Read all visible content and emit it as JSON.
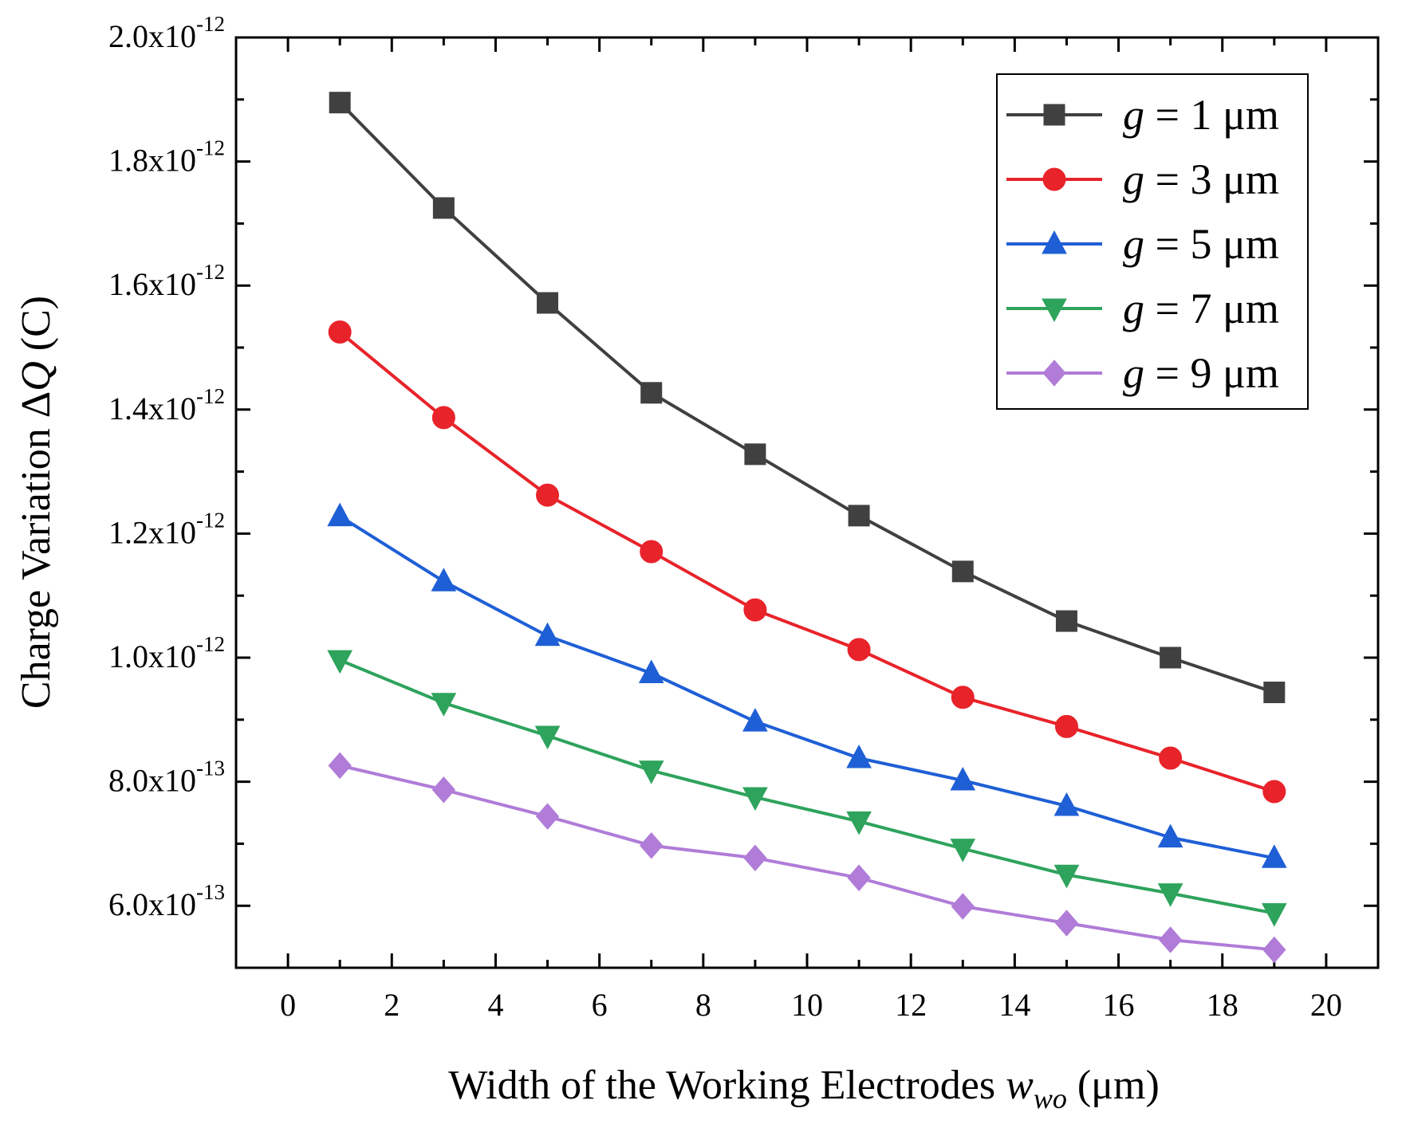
{
  "chart_data": {
    "type": "line",
    "title": "",
    "xlabel": {
      "main": "Width of the Working Electrodes ",
      "var": "w",
      "sub": "wo",
      "unit": " (μm)"
    },
    "ylabel": {
      "main": "Charge Variation Δ",
      "var": "Q",
      "unit": " (C)"
    },
    "xlim": [
      -1,
      21
    ],
    "ylim": [
      5e-13,
      2e-12
    ],
    "x_ticks": [
      0,
      2,
      4,
      6,
      8,
      10,
      12,
      14,
      16,
      18,
      20
    ],
    "x_tick_labels": [
      "0",
      "2",
      "4",
      "6",
      "8",
      "10",
      "12",
      "14",
      "16",
      "18",
      "20"
    ],
    "y_ticks": [
      {
        "value": 6e-13,
        "mantissa": "6.0x10",
        "exp": "-13"
      },
      {
        "value": 8e-13,
        "mantissa": "8.0x10",
        "exp": "-13"
      },
      {
        "value": 1e-12,
        "mantissa": "1.0x10",
        "exp": "-12"
      },
      {
        "value": 1.2e-12,
        "mantissa": "1.2x10",
        "exp": "-12"
      },
      {
        "value": 1.4e-12,
        "mantissa": "1.4x10",
        "exp": "-12"
      },
      {
        "value": 1.6e-12,
        "mantissa": "1.6x10",
        "exp": "-12"
      },
      {
        "value": 1.8e-12,
        "mantissa": "1.8x10",
        "exp": "-12"
      },
      {
        "value": 2e-12,
        "mantissa": "2.0x10",
        "exp": "-12"
      }
    ],
    "x": [
      1,
      3,
      5,
      7,
      9,
      11,
      13,
      15,
      17,
      19
    ],
    "legend_position": "top-right",
    "series": [
      {
        "name": "g = 1 μm",
        "var": "g",
        "rest": " = 1 μm",
        "marker": "square",
        "color": "#404040",
        "values": [
          1.895e-12,
          1.725e-12,
          1.572e-12,
          1.427e-12,
          1.328e-12,
          1.229e-12,
          1.139e-12,
          1.059e-12,
          1e-12,
          9.44e-13
        ]
      },
      {
        "name": "g = 3 μm",
        "var": "g",
        "rest": " = 3 μm",
        "marker": "circle",
        "color": "#e8232a",
        "values": [
          1.525e-12,
          1.387e-12,
          1.262e-12,
          1.171e-12,
          1.077e-12,
          1.013e-12,
          9.36e-13,
          8.89e-13,
          8.38e-13,
          7.84e-13
        ]
      },
      {
        "name": "g = 5 μm",
        "var": "g",
        "rest": " = 5 μm",
        "marker": "triangle-up",
        "color": "#1f5fd6",
        "values": [
          1.228e-12,
          1.123e-12,
          1.035e-12,
          9.75e-13,
          8.97e-13,
          8.38e-13,
          8.02e-13,
          7.61e-13,
          7.1e-13,
          6.77e-13
        ]
      },
      {
        "name": "g = 7 μm",
        "var": "g",
        "rest": " = 7 μm",
        "marker": "triangle-down",
        "color": "#2ea35c",
        "values": [
          9.96e-13,
          9.27e-13,
          8.74e-13,
          8.18e-13,
          7.75e-13,
          7.36e-13,
          6.92e-13,
          6.5e-13,
          6.2e-13,
          5.88e-13
        ]
      },
      {
        "name": "g = 9 μm",
        "var": "g",
        "rest": " = 9 μm",
        "marker": "diamond",
        "color": "#b07cd8",
        "values": [
          8.26e-13,
          7.87e-13,
          7.44e-13,
          6.97e-13,
          6.77e-13,
          6.45e-13,
          5.99e-13,
          5.72e-13,
          5.45e-13,
          5.29e-13
        ]
      }
    ]
  }
}
